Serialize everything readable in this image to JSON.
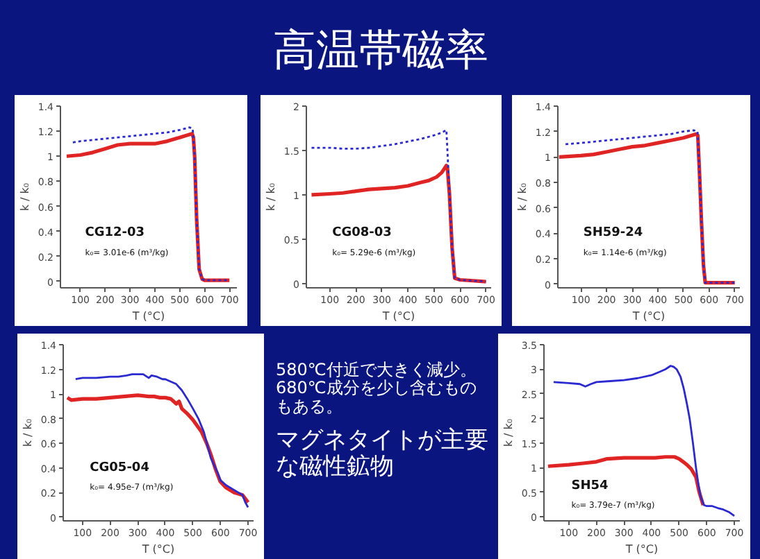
{
  "chart_data": [
    {
      "type": "other",
      "title": "高温帯磁率"
    },
    {
      "type": "line",
      "xlabel": "T (°C)",
      "ylabel": "k / k₀",
      "xlim": [
        20,
        730
      ],
      "ylim": [
        -0.05,
        1.4
      ],
      "xticks": [
        100,
        200,
        300,
        400,
        500,
        600,
        700
      ],
      "yticks": [
        0,
        0.2,
        0.4,
        0.6,
        0.8,
        1,
        1.2,
        1.4
      ],
      "annotations": [
        "CG12-03",
        "k₀= 3.01e-6 (m³/kg)"
      ],
      "series": [
        {
          "color": "#e02424",
          "line_style": "solid",
          "x": [
            45,
            100,
            150,
            200,
            250,
            300,
            350,
            400,
            450,
            500,
            550,
            555,
            560,
            568,
            578,
            590,
            600,
            650,
            700
          ],
          "values": [
            1.0,
            1.01,
            1.03,
            1.06,
            1.09,
            1.1,
            1.1,
            1.1,
            1.12,
            1.15,
            1.18,
            1.15,
            1.0,
            0.5,
            0.1,
            0.02,
            0.01,
            0.01,
            0.01
          ]
        },
        {
          "color": "#2a2ad0",
          "line_style": "dotted",
          "x": [
            70,
            100,
            150,
            200,
            250,
            300,
            350,
            400,
            450,
            500,
            540,
            552,
            560,
            568,
            578,
            590,
            600,
            650,
            700
          ],
          "values": [
            1.11,
            1.12,
            1.13,
            1.14,
            1.15,
            1.16,
            1.17,
            1.18,
            1.19,
            1.21,
            1.23,
            1.22,
            1.0,
            0.5,
            0.1,
            0.02,
            0.01,
            0.01,
            0.01
          ]
        }
      ]
    },
    {
      "type": "line",
      "xlabel": "T (°C)",
      "ylabel": "k / k₀",
      "xlim": [
        10,
        720
      ],
      "ylim": [
        -0.05,
        2
      ],
      "xticks": [
        100,
        200,
        300,
        400,
        500,
        600,
        700
      ],
      "yticks": [
        0,
        0.5,
        1,
        1.5,
        2
      ],
      "annotations": [
        "CG08-03",
        "k₀= 5.29e-6 (m³/kg)"
      ],
      "series": [
        {
          "color": "#e02424",
          "line_style": "solid",
          "x": [
            30,
            100,
            150,
            200,
            250,
            300,
            350,
            400,
            450,
            480,
            510,
            530,
            548,
            552,
            560,
            570,
            580,
            600,
            650,
            700
          ],
          "values": [
            1.0,
            1.01,
            1.02,
            1.04,
            1.06,
            1.07,
            1.08,
            1.1,
            1.14,
            1.16,
            1.2,
            1.25,
            1.33,
            1.3,
            1.0,
            0.4,
            0.06,
            0.04,
            0.03,
            0.02
          ]
        },
        {
          "color": "#2a2ad0",
          "line_style": "dotted",
          "x": [
            30,
            100,
            150,
            200,
            250,
            300,
            350,
            400,
            450,
            500,
            530,
            548,
            552,
            560,
            570,
            580,
            600,
            650,
            700
          ],
          "values": [
            1.53,
            1.53,
            1.52,
            1.52,
            1.53,
            1.55,
            1.57,
            1.6,
            1.63,
            1.67,
            1.7,
            1.73,
            1.5,
            1.0,
            0.4,
            0.06,
            0.04,
            0.03,
            0.02
          ]
        }
      ]
    },
    {
      "type": "line",
      "xlabel": "T (°C)",
      "ylabel": "k / k₀",
      "xlim": [
        10,
        720
      ],
      "ylim": [
        -0.03,
        1.4
      ],
      "xticks": [
        100,
        200,
        300,
        400,
        500,
        600,
        700
      ],
      "yticks": [
        0,
        0.2,
        0.4,
        0.6,
        0.8,
        1,
        1.2,
        1.4
      ],
      "annotations": [
        "SH59-24",
        "k₀= 1.14e-6 (m³/kg)"
      ],
      "series": [
        {
          "color": "#e02424",
          "line_style": "solid",
          "x": [
            15,
            100,
            150,
            200,
            250,
            300,
            350,
            400,
            450,
            500,
            550,
            556,
            562,
            570,
            578,
            585,
            600,
            650,
            700
          ],
          "values": [
            1.0,
            1.01,
            1.02,
            1.04,
            1.06,
            1.08,
            1.09,
            1.11,
            1.13,
            1.15,
            1.18,
            1.17,
            0.9,
            0.5,
            0.15,
            0.01,
            0.01,
            0.01,
            0.01
          ]
        },
        {
          "color": "#2a2ad0",
          "line_style": "dotted",
          "x": [
            40,
            100,
            150,
            200,
            250,
            300,
            350,
            400,
            450,
            500,
            540,
            555,
            562,
            570,
            578,
            585,
            600,
            650,
            700
          ],
          "values": [
            1.1,
            1.11,
            1.12,
            1.13,
            1.14,
            1.15,
            1.16,
            1.17,
            1.18,
            1.2,
            1.21,
            1.2,
            0.9,
            0.5,
            0.15,
            0.01,
            0.01,
            0.01,
            0.01
          ]
        }
      ]
    },
    {
      "type": "line",
      "xlabel": "T (°C)",
      "ylabel": "k / k₀",
      "xlim": [
        30,
        720
      ],
      "ylim": [
        -0.03,
        1.4
      ],
      "xticks": [
        100,
        200,
        300,
        400,
        500,
        600,
        700
      ],
      "yticks": [
        0,
        0.2,
        0.4,
        0.6,
        0.8,
        1,
        1.2,
        1.4
      ],
      "annotations": [
        "CG05-04",
        "k₀= 4.95e-7 (m³/kg)"
      ],
      "series": [
        {
          "color": "#e02424",
          "line_style": "solid",
          "x": [
            45,
            60,
            100,
            150,
            200,
            250,
            300,
            340,
            360,
            380,
            400,
            420,
            440,
            450,
            460,
            480,
            500,
            532,
            550,
            565,
            582,
            599,
            620,
            650,
            680,
            690,
            700
          ],
          "values": [
            0.97,
            0.95,
            0.96,
            0.96,
            0.97,
            0.98,
            0.99,
            0.98,
            0.98,
            0.97,
            0.97,
            0.96,
            0.92,
            0.94,
            0.88,
            0.84,
            0.79,
            0.69,
            0.6,
            0.51,
            0.39,
            0.29,
            0.24,
            0.2,
            0.18,
            0.15,
            0.12
          ]
        },
        {
          "color": "#2a2ad0",
          "line_style": "solid",
          "x": [
            75,
            100,
            150,
            200,
            230,
            260,
            280,
            300,
            320,
            340,
            350,
            370,
            390,
            400,
            420,
            440,
            460,
            480,
            498,
            520,
            540,
            565,
            590,
            600,
            620,
            650,
            680,
            690,
            700
          ],
          "values": [
            1.12,
            1.13,
            1.13,
            1.14,
            1.14,
            1.15,
            1.16,
            1.16,
            1.16,
            1.13,
            1.15,
            1.14,
            1.12,
            1.12,
            1.1,
            1.08,
            1.03,
            0.96,
            0.89,
            0.8,
            0.69,
            0.48,
            0.36,
            0.3,
            0.26,
            0.22,
            0.18,
            0.12,
            0.08
          ]
        }
      ]
    },
    {
      "type": "other",
      "annotations": [
        "580℃付近で大きく減少。680℃成分を少し含むものもある。",
        "マグネタイトが主要な磁性鉱物"
      ]
    },
    {
      "type": "line",
      "xlabel": "T (°C)",
      "ylabel": "k / k₀",
      "xlim": [
        10,
        720
      ],
      "ylim": [
        -0.08,
        3.5
      ],
      "xticks": [
        100,
        200,
        300,
        400,
        500,
        600,
        700
      ],
      "yticks": [
        0,
        0.5,
        1,
        1.5,
        2,
        2.5,
        3,
        3.5
      ],
      "annotations": [
        "SH54",
        "k₀= 3.79e-7 (m³/kg)"
      ],
      "series": [
        {
          "color": "#e02424",
          "line_style": "solid",
          "x": [
            25,
            100,
            152,
            200,
            239,
            300,
            350,
            413,
            450,
            483,
            500,
            517,
            530,
            543,
            561,
            573,
            587
          ],
          "values": [
            1.03,
            1.06,
            1.09,
            1.12,
            1.18,
            1.2,
            1.2,
            1.2,
            1.22,
            1.22,
            1.18,
            1.11,
            1.05,
            0.98,
            0.81,
            0.5,
            0.24
          ]
        },
        {
          "color": "#2a2ad0",
          "line_style": "solid",
          "x": [
            45,
            100,
            140,
            160,
            180,
            200,
            250,
            300,
            350,
            400,
            430,
            450,
            469,
            480,
            491,
            505,
            517,
            528,
            538,
            550,
            561,
            570,
            578,
            590,
            600,
            620,
            640,
            660,
            680,
            700
          ],
          "values": [
            2.74,
            2.72,
            2.7,
            2.65,
            2.7,
            2.74,
            2.76,
            2.78,
            2.82,
            2.88,
            2.95,
            3.0,
            3.07,
            3.05,
            3.0,
            2.85,
            2.6,
            2.3,
            2.0,
            1.5,
            1.0,
            0.65,
            0.41,
            0.24,
            0.22,
            0.22,
            0.18,
            0.15,
            0.1,
            0.02
          ]
        }
      ]
    }
  ]
}
